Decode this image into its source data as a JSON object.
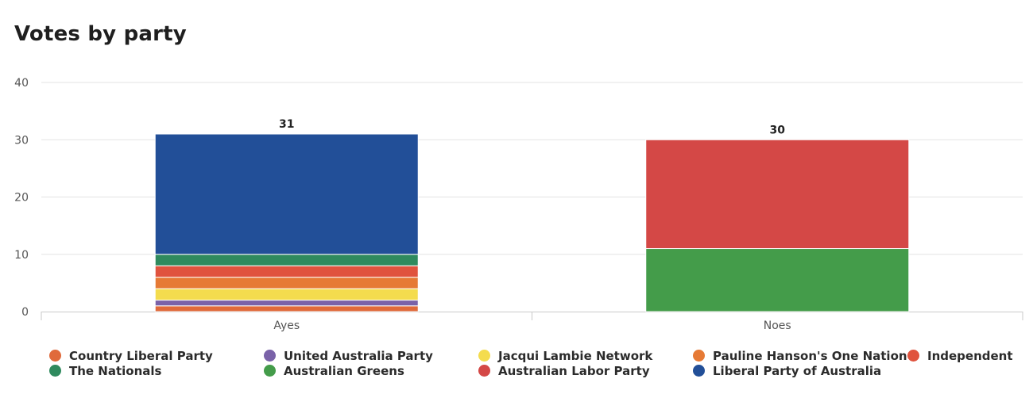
{
  "chart_data": {
    "type": "bar",
    "stacked": true,
    "title": "Votes by party",
    "xlabel": "",
    "ylabel": "",
    "categories": [
      "Ayes",
      "Noes"
    ],
    "ylim": [
      0,
      40
    ],
    "yticks": [
      0,
      10,
      20,
      30,
      40
    ],
    "grid": true,
    "legend_position": "bottom",
    "totals": [
      31,
      30
    ],
    "series": [
      {
        "name": "Country Liberal Party",
        "color": "#e06a3b",
        "values": [
          1,
          0
        ]
      },
      {
        "name": "United Australia Party",
        "color": "#7a62a8",
        "values": [
          1,
          0
        ]
      },
      {
        "name": "Jacqui Lambie Network",
        "color": "#f4dc4e",
        "values": [
          2,
          0
        ]
      },
      {
        "name": "Pauline Hanson's One Nation",
        "color": "#e67a35",
        "values": [
          2,
          0
        ]
      },
      {
        "name": "Independent",
        "color": "#e0533e",
        "values": [
          2,
          0
        ]
      },
      {
        "name": "The Nationals",
        "color": "#2f8a5e",
        "values": [
          2,
          0
        ]
      },
      {
        "name": "Australian Greens",
        "color": "#449c4a",
        "values": [
          0,
          11
        ]
      },
      {
        "name": "Australian Labor Party",
        "color": "#d44846",
        "values": [
          0,
          19
        ]
      },
      {
        "name": "Liberal Party of Australia",
        "color": "#224f98",
        "values": [
          21,
          0
        ]
      }
    ]
  }
}
